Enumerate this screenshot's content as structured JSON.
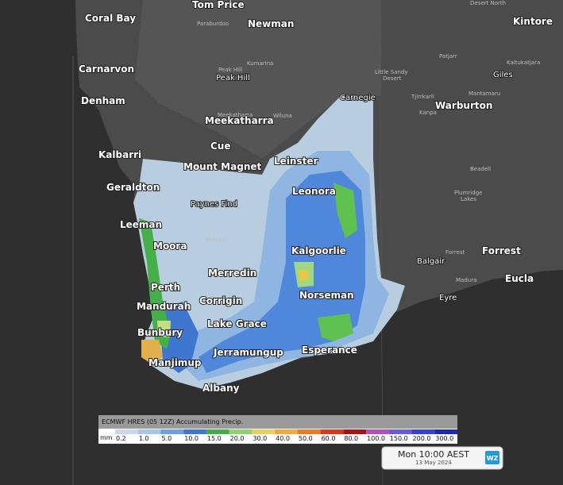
{
  "places": [
    "Coral Bay",
    "Tom Price",
    "Newman",
    "Kintore",
    "Carnarvon",
    "Denham",
    "Meekatharra",
    "Cue",
    "Kalbarri",
    "Mount Magnet",
    "Leinster",
    "Geraldton",
    "Leonora",
    "Leeman",
    "Moora",
    "Kalgoorlie",
    "Merredin",
    "Perth",
    "Mandurah",
    "Corrigin",
    "Norseman",
    "Bunbury",
    "Lake Grace",
    "Jerramungup",
    "Esperance",
    "Manjimup",
    "Albany",
    "Warburton",
    "Forrest",
    "Eucla",
    "Giles",
    "Paynes Find",
    "Peak Hill",
    "Balgair",
    "Carnegie",
    "Paraburdoo",
    "Kumarina",
    "Peak Hill",
    "Wiluna",
    "Meekatharra",
    "Little Sandy",
    "Desert",
    "Patjarr",
    "Kaltukatjara",
    "Mantamaru",
    "Tjirrkarli",
    "Kanpa",
    "Beadell",
    "Plumridge",
    "Lakes",
    "Forrest",
    "Madura",
    "Eyre",
    "Desert North",
    "Beacon"
  ],
  "legend": {
    "title": "ECMWF HRES (05 12Z) Accumulating Precip.",
    "unit": "mm",
    "labels": [
      "0.2",
      "1.0",
      "5.0",
      "10.0",
      "15.0",
      "20.0",
      "30.0",
      "40.0",
      "50.0",
      "60.0",
      "80.0",
      "100.0",
      "150.0",
      "200.0",
      "300.0"
    ],
    "colors": [
      "#c9d9ea",
      "#a9c6e8",
      "#6f9fe2",
      "#3f76d4",
      "#42ad47",
      "#8fd36c",
      "#e9d060",
      "#f0a840",
      "#ea7a2a",
      "#d63a1e",
      "#a31414",
      "#b24fb8",
      "#6a5bd6",
      "#3640d8",
      "#1c2aa8"
    ]
  },
  "timestamp": {
    "time": "Mon 10:00 AEST",
    "date": "13 May 2024"
  },
  "logo": "WZ"
}
